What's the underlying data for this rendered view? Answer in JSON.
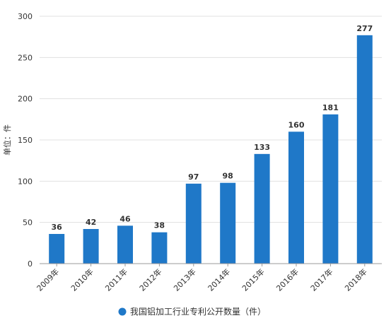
{
  "chart_data": {
    "type": "bar",
    "categories": [
      "2009年",
      "2010年",
      "2011年",
      "2012年",
      "2013年",
      "2014年",
      "2015年",
      "2016年",
      "2017年",
      "2018年"
    ],
    "series": [
      {
        "name": "我国铝加工行业专利公开数量（件）",
        "values": [
          36,
          42,
          46,
          38,
          97,
          98,
          133,
          160,
          181,
          277
        ],
        "color": "#1f78c8"
      }
    ],
    "ylabel": "单位：件",
    "ylim": [
      0,
      300
    ],
    "yticks": [
      0,
      50,
      100,
      150,
      200,
      250,
      300
    ],
    "grid": true,
    "legend_position": "bottom-center",
    "colors": {
      "bar": "#1f78c8",
      "grid": "#e0e0e0",
      "axis": "#999999",
      "text": "#333333"
    }
  }
}
